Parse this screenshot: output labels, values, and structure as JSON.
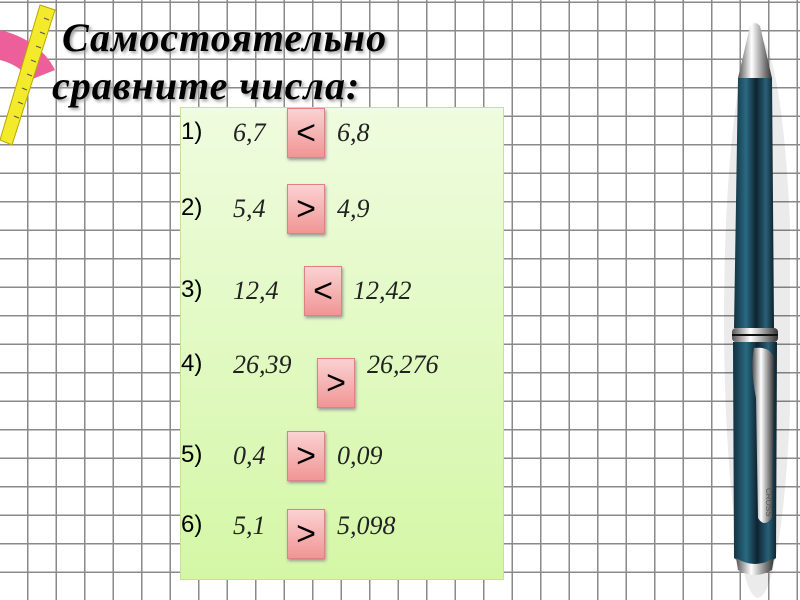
{
  "title": {
    "line1": "Самостоятельно",
    "line2": "сравните числа:"
  },
  "items": [
    {
      "num": "1)",
      "a": "6,7",
      "sign": "<",
      "b": "6,8"
    },
    {
      "num": "2)",
      "a": "5,4",
      "sign": ">",
      "b": "4,9"
    },
    {
      "num": "3)",
      "a": "12,4",
      "sign": "<",
      "b": "12,42"
    },
    {
      "num": "4)",
      "a": "26,39",
      "sign": ">",
      "b": "26,276"
    },
    {
      "num": "5)",
      "a": "0,4",
      "sign": ">",
      "b": "0,09"
    },
    {
      "num": "6)",
      "a": "5,1",
      "sign": ">",
      "b": "5,098"
    }
  ],
  "pen": {
    "engraving": "CROSS"
  },
  "colors": {
    "panel": "#d4f7a6",
    "sign_box": "#f19595",
    "pen_body": "#1f4a5e"
  }
}
